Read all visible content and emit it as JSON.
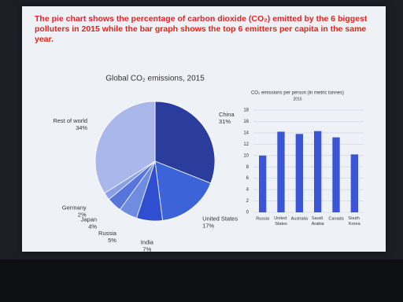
{
  "header": {
    "text": "The pie chart shows the percentage of carbon dioxide (CO₂) emitted by the 6 biggest polluters in 2015 while the bar graph shows the top 6 emitters per capita in the same year."
  },
  "chart_data": [
    {
      "type": "pie",
      "title": "Global CO₂ emissions, 2015",
      "categories": [
        "China",
        "United States",
        "India",
        "Russia",
        "Japan",
        "Germany",
        "Rest of world"
      ],
      "values": [
        31,
        17,
        7,
        5,
        4,
        2,
        34
      ],
      "value_labels": [
        "31%",
        "17%",
        "7%",
        "5%",
        "4%",
        "2%",
        "34%"
      ],
      "colors": [
        "#2a3c9c",
        "#3c63d8",
        "#2f4fd0",
        "#6f8ce0",
        "#5676dc",
        "#8aa0e6",
        "#a9b8ea"
      ]
    },
    {
      "type": "bar",
      "title": "CO₂ emissions per person (in metric tonnes)",
      "subtitle": "2015",
      "categories": [
        "Russia",
        "United States",
        "Australia",
        "Saudi Arabia",
        "Canada",
        "South Korea"
      ],
      "values": [
        10,
        14.2,
        13.8,
        14.3,
        13.2,
        10.2
      ],
      "color": "#3a56d4",
      "ylim": [
        0,
        18
      ],
      "yticks": [
        0,
        2,
        4,
        6,
        8,
        10,
        12,
        14,
        16,
        18
      ],
      "grid": true
    }
  ]
}
